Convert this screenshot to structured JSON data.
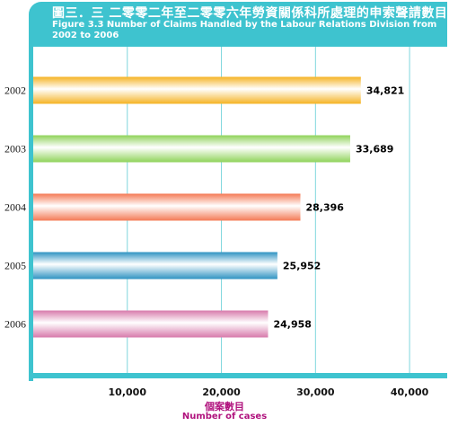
{
  "title_zh": "圖三．三 二零零二年至二零零六年勞資關係科所處理的申索聲請數目",
  "title_en": "Figure 3.3  Number of Claims Handled by the Labour Relations Division from 2002 to 2006",
  "chart_data": {
    "type": "bar",
    "orientation": "horizontal",
    "categories": [
      "2002",
      "2003",
      "2004",
      "2005",
      "2006"
    ],
    "values": [
      34821,
      33689,
      28396,
      25952,
      24958
    ],
    "value_labels": [
      "34,821",
      "33,689",
      "28,396",
      "25,952",
      "24,958"
    ],
    "xlabel_zh": "個案數目",
    "xlabel": "Number of cases",
    "xlim": [
      0,
      44000
    ],
    "xticks": [
      10000,
      20000,
      30000,
      40000
    ],
    "xtick_labels": [
      "10,000",
      "20,000",
      "30,000",
      "40,000"
    ],
    "grid": true,
    "colors": {
      "2002": "#f5b324",
      "2003": "#8fd35a",
      "2004": "#f47a55",
      "2005": "#2f93c2",
      "2006": "#d77aab"
    },
    "frame_color": "#3ec3cf",
    "grid_color": "#7fd6dd",
    "label_color": "#b0127d"
  }
}
